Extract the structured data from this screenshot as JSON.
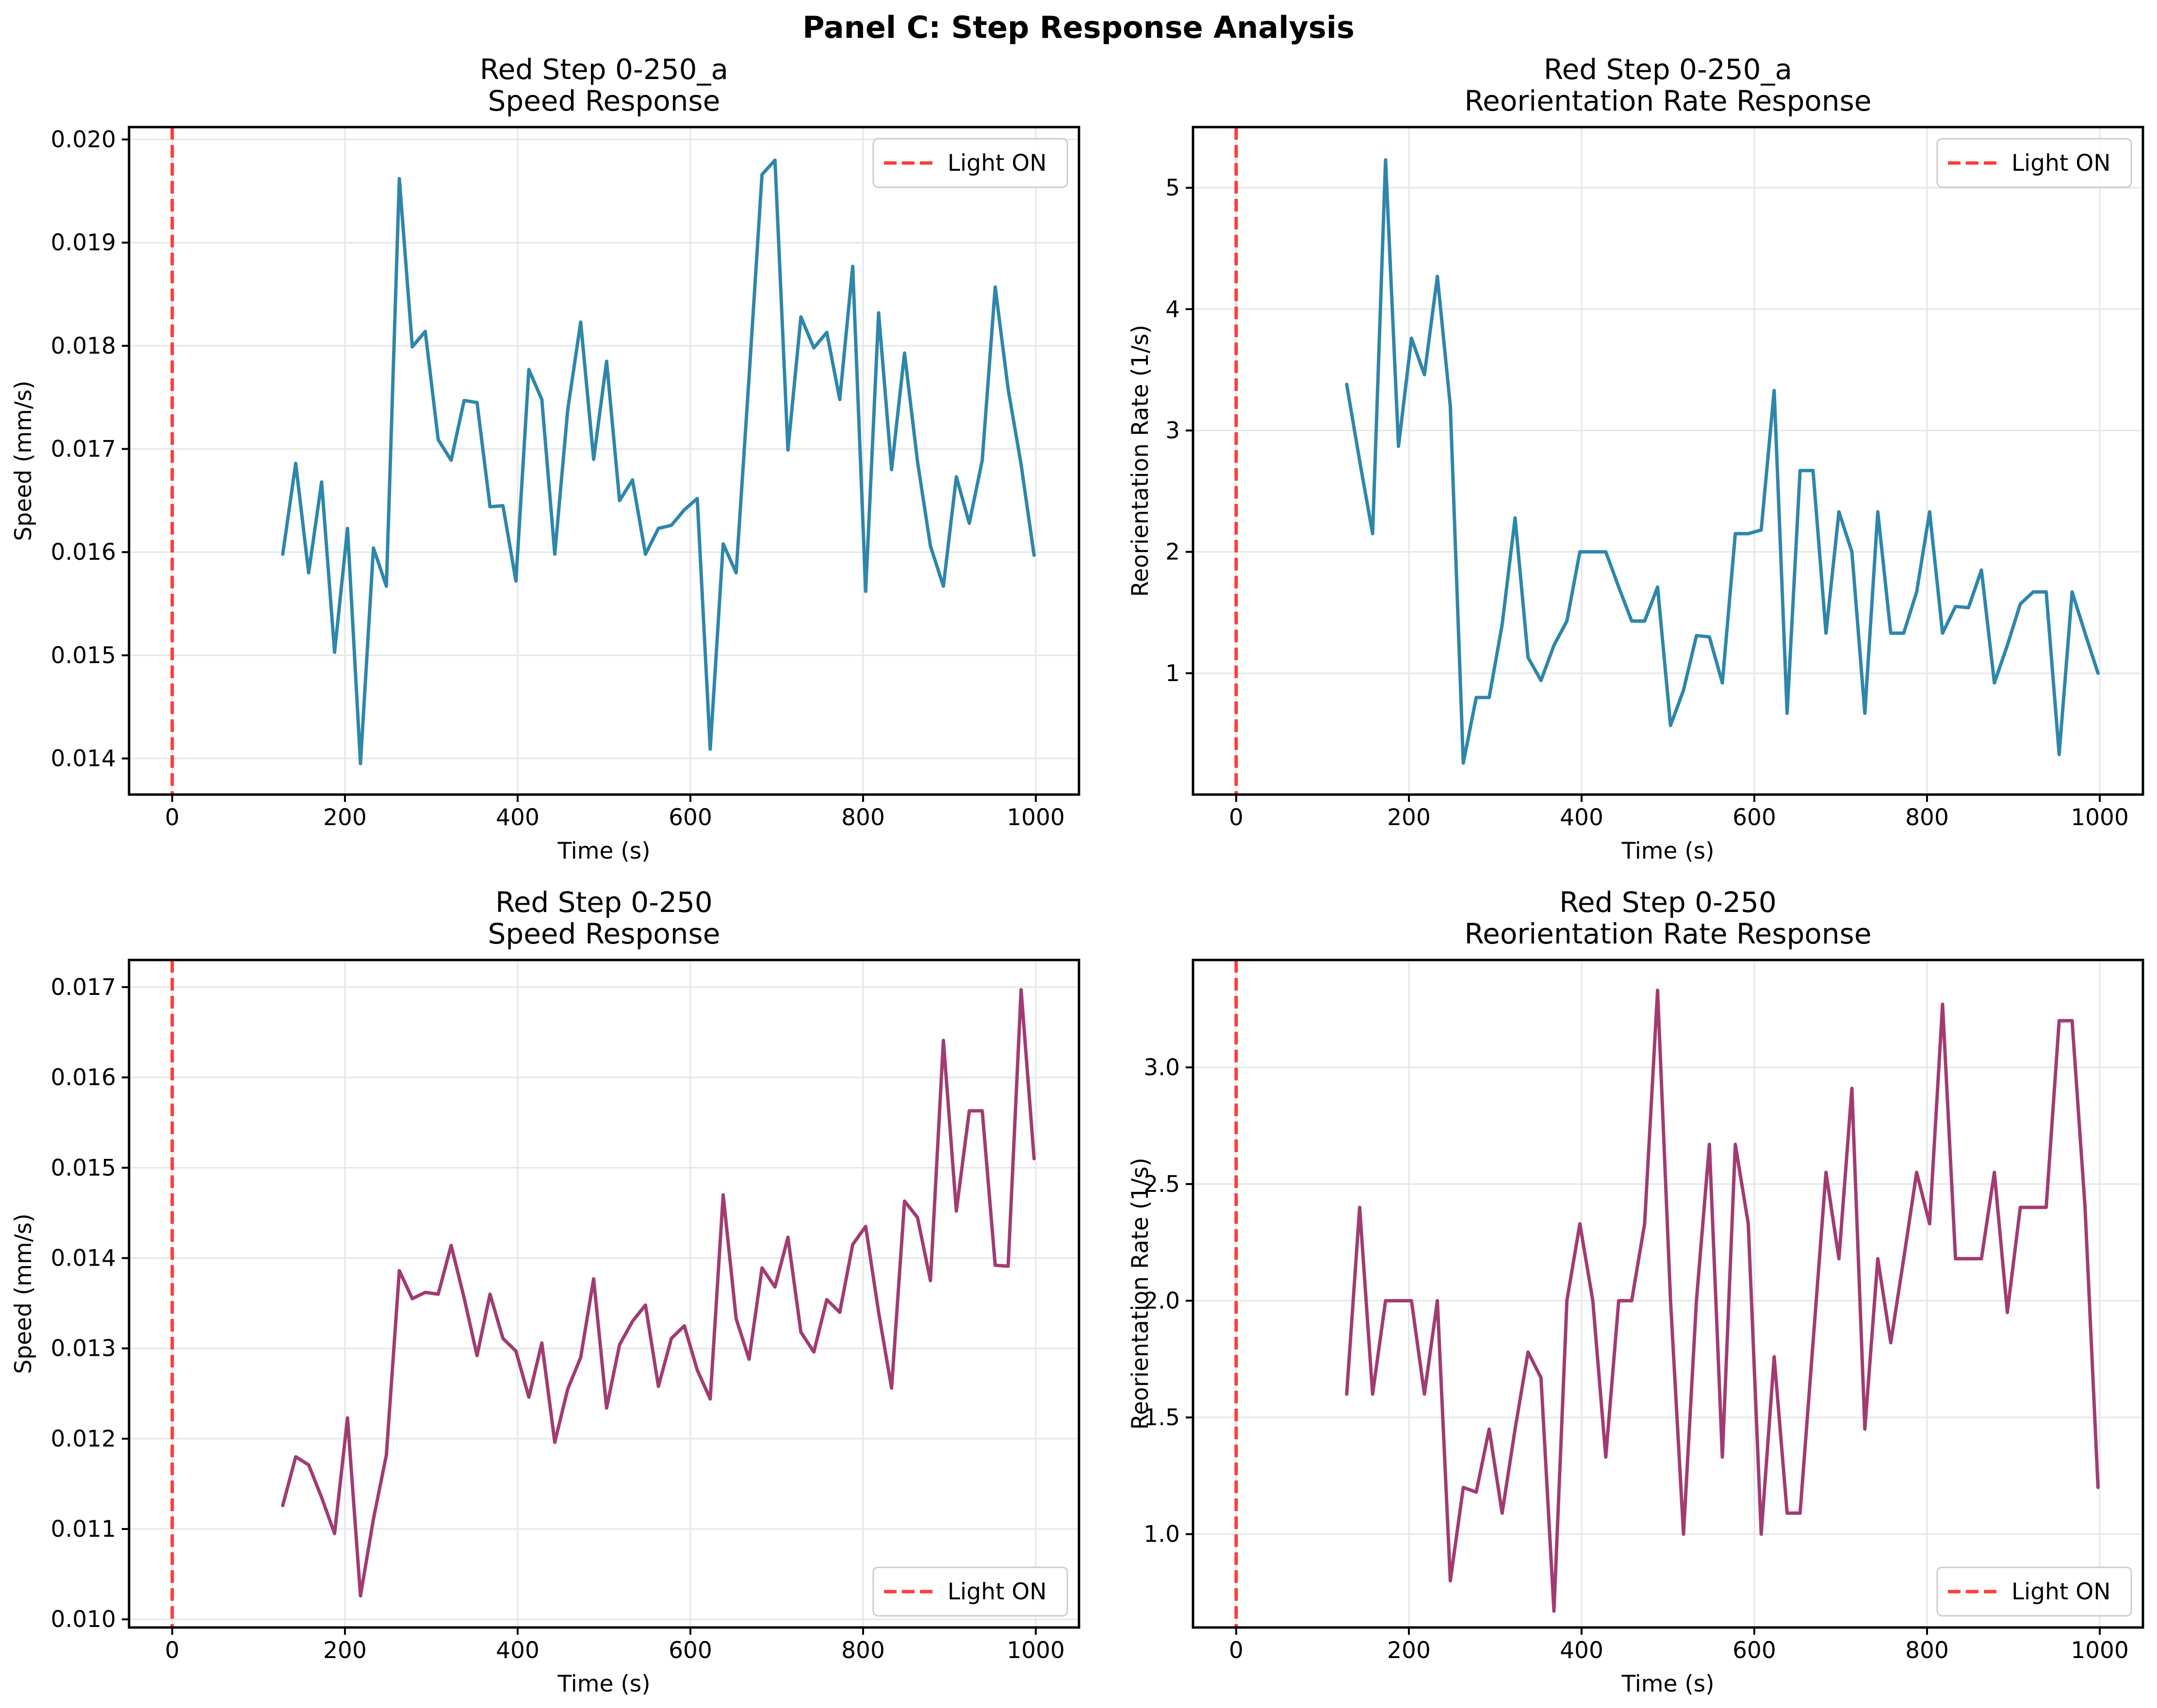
{
  "suptitle": "Panel C: Step Response Analysis",
  "colors": {
    "blue_series": "#2e86ab",
    "purple_series": "#a23b72",
    "light_on_line": "#ff3b3b",
    "grid": "#e6e6e6",
    "axis": "#000000"
  },
  "chart_data": [
    {
      "type": "line",
      "title_line1": "Red Step 0-250_a",
      "title_line2": "Speed Response",
      "xlabel": "Time (s)",
      "ylabel": "Speed (mm/s)",
      "xlim": [
        -50,
        1050
      ],
      "ylim": [
        0.01365,
        0.02012
      ],
      "xticks": [
        0,
        200,
        400,
        600,
        800,
        1000
      ],
      "xtick_labels": [
        "0",
        "200",
        "400",
        "600",
        "800",
        "1000"
      ],
      "yticks": [
        0.014,
        0.015,
        0.016,
        0.017,
        0.018,
        0.019,
        0.02
      ],
      "ytick_labels": [
        "0.014",
        "0.015",
        "0.016",
        "0.017",
        "0.018",
        "0.019",
        "0.020"
      ],
      "grid": true,
      "legend": {
        "entries": [
          "Light ON"
        ],
        "location": "upper right"
      },
      "vline": {
        "x": 0,
        "label": "Light ON",
        "style": "dashed"
      },
      "series": [
        {
          "name": "speed",
          "color": "#2e86ab",
          "x": [
            128,
            143,
            158,
            173,
            188,
            203,
            218,
            233,
            248,
            263,
            278,
            293,
            308,
            323,
            338,
            353,
            368,
            383,
            398,
            413,
            428,
            443,
            458,
            473,
            488,
            503,
            518,
            533,
            548,
            563,
            578,
            593,
            608,
            623,
            638,
            653,
            668,
            683,
            698,
            713,
            728,
            743,
            758,
            773,
            788,
            803,
            818,
            833,
            848,
            863,
            878,
            893,
            908,
            923,
            938,
            953,
            968,
            983,
            998
          ],
          "values": [
            0.01598,
            0.01686,
            0.0158,
            0.01668,
            0.01503,
            0.01623,
            0.01395,
            0.01604,
            0.01567,
            0.01962,
            0.01799,
            0.01814,
            0.01709,
            0.01689,
            0.01747,
            0.01745,
            0.01644,
            0.01645,
            0.01572,
            0.01777,
            0.01748,
            0.01598,
            0.01738,
            0.01823,
            0.0169,
            0.01785,
            0.0165,
            0.0167,
            0.01598,
            0.01623,
            0.01626,
            0.01641,
            0.01652,
            0.01409,
            0.01608,
            0.0158,
            0.0177,
            0.01966,
            0.0198,
            0.01699,
            0.01828,
            0.01798,
            0.01813,
            0.01748,
            0.01877,
            0.01562,
            0.01832,
            0.0168,
            0.01793,
            0.01688,
            0.01606,
            0.01567,
            0.01673,
            0.01628,
            0.01689,
            0.01857,
            0.01758,
            0.01685,
            0.01597
          ]
        }
      ]
    },
    {
      "type": "line",
      "title_line1": "Red Step 0-250_a",
      "title_line2": "Reorientation Rate Response",
      "xlabel": "Time (s)",
      "ylabel": "Reorientation Rate (1/s)",
      "xlim": [
        -50,
        1050
      ],
      "ylim": [
        0.0,
        5.5
      ],
      "xticks": [
        0,
        200,
        400,
        600,
        800,
        1000
      ],
      "xtick_labels": [
        "0",
        "200",
        "400",
        "600",
        "800",
        "1000"
      ],
      "yticks": [
        1,
        2,
        3,
        4,
        5
      ],
      "ytick_labels": [
        "1",
        "2",
        "3",
        "4",
        "5"
      ],
      "grid": true,
      "legend": {
        "entries": [
          "Light ON"
        ],
        "location": "upper right"
      },
      "vline": {
        "x": 0,
        "label": "Light ON",
        "style": "dashed"
      },
      "series": [
        {
          "name": "reorientation rate",
          "color": "#2e86ab",
          "x": [
            128,
            143,
            158,
            173,
            188,
            203,
            218,
            233,
            248,
            263,
            278,
            293,
            308,
            323,
            338,
            353,
            368,
            383,
            398,
            413,
            428,
            443,
            458,
            473,
            488,
            503,
            518,
            533,
            548,
            563,
            578,
            593,
            608,
            623,
            638,
            653,
            668,
            683,
            698,
            713,
            728,
            743,
            758,
            773,
            788,
            803,
            818,
            833,
            848,
            863,
            878,
            893,
            908,
            923,
            938,
            953,
            968,
            983,
            998
          ],
          "values": [
            3.38,
            2.75,
            2.15,
            5.23,
            2.87,
            3.76,
            3.46,
            4.27,
            3.2,
            0.26,
            0.8,
            0.8,
            1.4,
            2.28,
            1.13,
            0.94,
            1.23,
            1.43,
            2.0,
            2.0,
            2.0,
            1.71,
            1.43,
            1.43,
            1.71,
            0.57,
            0.86,
            1.31,
            1.3,
            0.92,
            2.15,
            2.15,
            2.18,
            3.33,
            0.67,
            2.67,
            2.67,
            1.33,
            2.33,
            2.0,
            0.67,
            2.33,
            1.33,
            1.33,
            1.67,
            2.33,
            1.33,
            1.55,
            1.54,
            1.85,
            0.92,
            1.23,
            1.57,
            1.67,
            1.67,
            0.33,
            1.67,
            1.33,
            1.0
          ]
        }
      ]
    },
    {
      "type": "line",
      "title_line1": "Red Step 0-250",
      "title_line2": "Speed Response",
      "xlabel": "Time (s)",
      "ylabel": "Speed (mm/s)",
      "xlim": [
        -50,
        1050
      ],
      "ylim": [
        0.00991,
        0.0173
      ],
      "xticks": [
        0,
        200,
        400,
        600,
        800,
        1000
      ],
      "xtick_labels": [
        "0",
        "200",
        "400",
        "600",
        "800",
        "1000"
      ],
      "yticks": [
        0.01,
        0.011,
        0.012,
        0.013,
        0.014,
        0.015,
        0.016,
        0.017
      ],
      "ytick_labels": [
        "0.010",
        "0.011",
        "0.012",
        "0.013",
        "0.014",
        "0.015",
        "0.016",
        "0.017"
      ],
      "grid": true,
      "legend": {
        "entries": [
          "Light ON"
        ],
        "location": "lower right"
      },
      "vline": {
        "x": 0,
        "label": "Light ON",
        "style": "dashed"
      },
      "series": [
        {
          "name": "speed",
          "color": "#a23b72",
          "x": [
            128,
            143,
            158,
            173,
            188,
            203,
            218,
            233,
            248,
            263,
            278,
            293,
            308,
            323,
            338,
            353,
            368,
            383,
            398,
            413,
            428,
            443,
            458,
            473,
            488,
            503,
            518,
            533,
            548,
            563,
            578,
            593,
            608,
            623,
            638,
            653,
            668,
            683,
            698,
            713,
            728,
            743,
            758,
            773,
            788,
            803,
            818,
            833,
            848,
            863,
            878,
            893,
            908,
            923,
            938,
            953,
            968,
            983,
            998
          ],
          "values": [
            0.01126,
            0.0118,
            0.01171,
            0.01135,
            0.01095,
            0.01223,
            0.01026,
            0.01111,
            0.01182,
            0.01386,
            0.01355,
            0.01362,
            0.0136,
            0.01414,
            0.01356,
            0.01292,
            0.0136,
            0.01311,
            0.01297,
            0.01246,
            0.01306,
            0.01196,
            0.01255,
            0.0129,
            0.01377,
            0.01234,
            0.01304,
            0.0133,
            0.01348,
            0.01258,
            0.01311,
            0.01325,
            0.01276,
            0.01244,
            0.0147,
            0.01333,
            0.01288,
            0.01389,
            0.01368,
            0.01423,
            0.01318,
            0.01296,
            0.01354,
            0.0134,
            0.01415,
            0.01435,
            0.0134,
            0.01256,
            0.01463,
            0.01445,
            0.01375,
            0.01641,
            0.01452,
            0.01563,
            0.01563,
            0.01392,
            0.01391,
            0.01697,
            0.0151
          ]
        }
      ]
    },
    {
      "type": "line",
      "title_line1": "Red Step 0-250",
      "title_line2": "Reorientation Rate Response",
      "xlabel": "Time (s)",
      "ylabel": "Reorientation Rate (1/s)",
      "xlim": [
        -50,
        1050
      ],
      "ylim": [
        0.6,
        3.46
      ],
      "xticks": [
        0,
        200,
        400,
        600,
        800,
        1000
      ],
      "xtick_labels": [
        "0",
        "200",
        "400",
        "600",
        "800",
        "1000"
      ],
      "yticks": [
        1.0,
        1.5,
        2.0,
        2.5,
        3.0
      ],
      "ytick_labels": [
        "1.0",
        "1.5",
        "2.0",
        "2.5",
        "3.0"
      ],
      "grid": true,
      "legend": {
        "entries": [
          "Light ON"
        ],
        "location": "lower right"
      },
      "vline": {
        "x": 0,
        "label": "Light ON",
        "style": "dashed"
      },
      "series": [
        {
          "name": "reorientation rate",
          "color": "#a23b72",
          "x": [
            128,
            143,
            158,
            173,
            188,
            203,
            218,
            233,
            248,
            263,
            278,
            293,
            308,
            323,
            338,
            353,
            368,
            383,
            398,
            413,
            428,
            443,
            458,
            473,
            488,
            503,
            518,
            533,
            548,
            563,
            578,
            593,
            608,
            623,
            638,
            653,
            668,
            683,
            698,
            713,
            728,
            743,
            758,
            773,
            788,
            803,
            818,
            833,
            848,
            863,
            878,
            893,
            908,
            923,
            938,
            953,
            968,
            983,
            998
          ],
          "values": [
            1.6,
            2.4,
            1.6,
            2.0,
            2.0,
            2.0,
            1.6,
            2.0,
            0.8,
            1.2,
            1.18,
            1.45,
            1.09,
            1.45,
            1.78,
            1.67,
            0.67,
            2.0,
            2.33,
            2.0,
            1.33,
            2.0,
            2.0,
            2.33,
            3.33,
            2.0,
            1.0,
            2.0,
            2.67,
            1.33,
            2.67,
            2.33,
            1.0,
            1.76,
            1.09,
            1.09,
            1.82,
            2.55,
            2.18,
            2.91,
            1.45,
            2.18,
            1.82,
            2.18,
            2.55,
            2.33,
            3.27,
            2.18,
            2.18,
            2.18,
            2.55,
            1.95,
            2.4,
            2.4,
            2.4,
            3.2,
            3.2,
            2.4,
            1.2
          ]
        }
      ]
    }
  ]
}
